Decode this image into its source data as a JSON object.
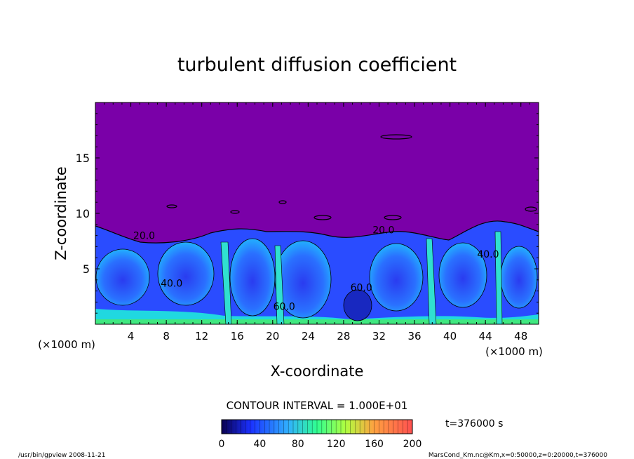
{
  "chart_data": {
    "type": "heatmap",
    "title": "turbulent diffusion coefficient",
    "xlabel": "X-coordinate",
    "ylabel": "Z-coordinate",
    "x_unit": "(×1000 m)",
    "x_unit_right": "(×1000 m)",
    "y_unit": "(×1000 m)",
    "xlim": [
      0,
      50
    ],
    "ylim": [
      0,
      20
    ],
    "x_ticks": [
      4,
      8,
      12,
      16,
      20,
      24,
      28,
      32,
      36,
      40,
      44,
      48
    ],
    "y_ticks": [
      5,
      10,
      15
    ],
    "contour_labels": [
      {
        "text": "20.0",
        "x": 5.5,
        "z": 7.7
      },
      {
        "text": "40.0",
        "x": 8.6,
        "z": 3.4
      },
      {
        "text": "60.0",
        "x": 21.3,
        "z": 1.3
      },
      {
        "text": "60.0",
        "x": 30.0,
        "z": 3.0
      },
      {
        "text": "20.0",
        "x": 32.5,
        "z": 8.2
      },
      {
        "text": "40.0",
        "x": 44.3,
        "z": 6.0
      }
    ],
    "colorbar": {
      "ticks": [
        0,
        40,
        80,
        120,
        160,
        200
      ],
      "range": [
        0,
        200
      ],
      "colors": [
        "#0a0060",
        "#1a3aff",
        "#2aa0ff",
        "#30e0c0",
        "#40ff60",
        "#c0e040",
        "#ff8040",
        "#ff6060"
      ]
    },
    "contour_interval_text": "CONTOUR INTERVAL = 1.000E+01",
    "time_text": "t=376000 s",
    "background_color": "#7a00a8"
  },
  "footer": {
    "left": "/usr/bin/gpview   2008-11-21",
    "right": "MarsCond_Km.nc@Km,x=0:50000,z=0:20000,t=376000"
  }
}
